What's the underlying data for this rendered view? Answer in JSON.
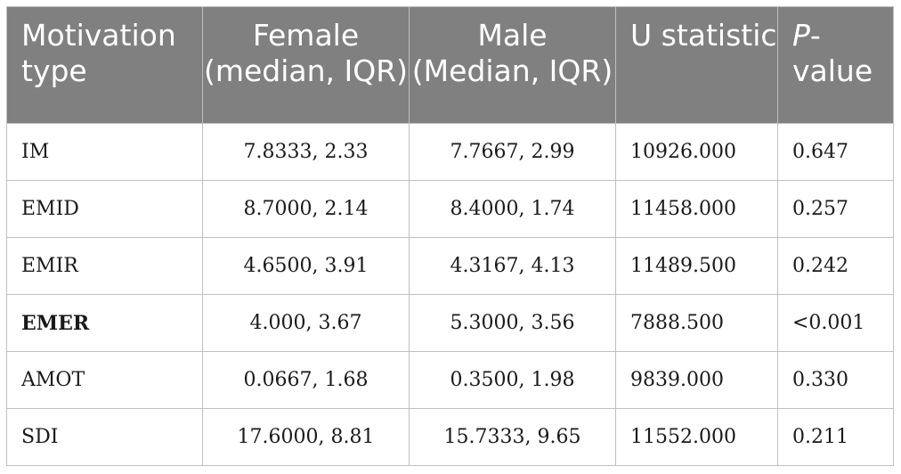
{
  "table": {
    "headers": {
      "motivation_type": "Motivation type",
      "female": "Female (median, IQR)",
      "male": "Male (Median, IQR)",
      "u_statistic": "U statistic",
      "p_value_italic": "P",
      "p_value_rest": "-value"
    },
    "rows": [
      {
        "type": "IM",
        "female": "7.8333, 2.33",
        "male": "7.7667, 2.99",
        "u": "10926.000",
        "p": "0.647",
        "bold": false
      },
      {
        "type": "EMID",
        "female": "8.7000, 2.14",
        "male": "8.4000, 1.74",
        "u": "11458.000",
        "p": "0.257",
        "bold": false
      },
      {
        "type": "EMIR",
        "female": "4.6500, 3.91",
        "male": "4.3167, 4.13",
        "u": "11489.500",
        "p": "0.242",
        "bold": false
      },
      {
        "type": "EMER",
        "female": "4.000, 3.67",
        "male": "5.3000, 3.56",
        "u": "7888.500",
        "p": "<0.001",
        "bold": true
      },
      {
        "type": "AMOT",
        "female": "0.0667, 1.68",
        "male": "0.3500, 1.98",
        "u": "9839.000",
        "p": "0.330",
        "bold": false
      },
      {
        "type": "SDI",
        "female": "17.6000, 8.81",
        "male": "15.7333, 9.65",
        "u": "11552.000",
        "p": "0.211",
        "bold": false
      }
    ]
  },
  "colors": {
    "header_bg": "#808080",
    "header_text": "#ffffff",
    "grid": "#bfbfbf"
  }
}
